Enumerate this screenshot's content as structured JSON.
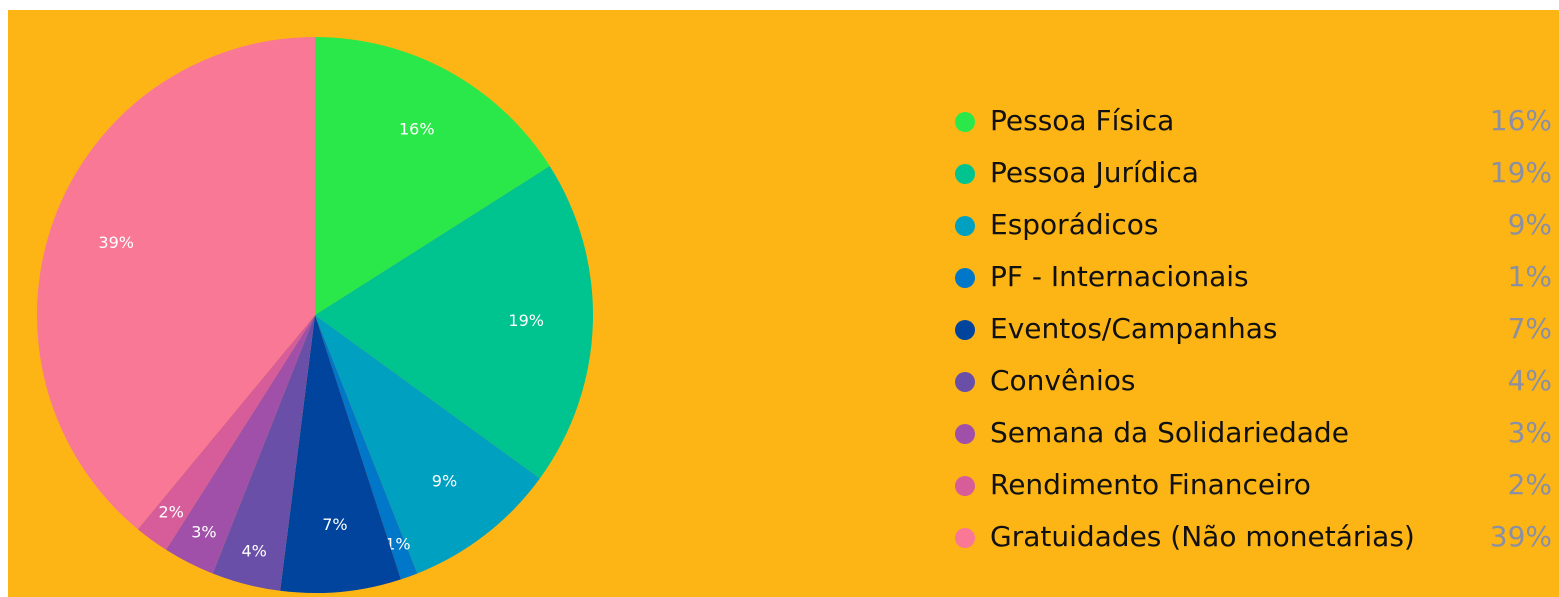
{
  "chart_data": {
    "type": "pie",
    "categories": [
      "Pessoa Física",
      "Pessoa Jurídica",
      "Esporádicos",
      "PF - Internacionais",
      "Eventos/Campanhas",
      "Convênios",
      "Semana da Solidariedade",
      "Rendimento Financeiro",
      "Gratuidades (Não monetárias)"
    ],
    "values": [
      16,
      19,
      9,
      1,
      7,
      4,
      3,
      2,
      39
    ],
    "value_labels": [
      "16%",
      "19%",
      "9%",
      "1%",
      "7%",
      "4%",
      "3%",
      "2%",
      "39%"
    ],
    "colors": [
      "#2be84a",
      "#00c48f",
      "#00a0c0",
      "#0077c8",
      "#00449e",
      "#6a4fa8",
      "#a050a8",
      "#d65c9a",
      "#f87896"
    ]
  }
}
